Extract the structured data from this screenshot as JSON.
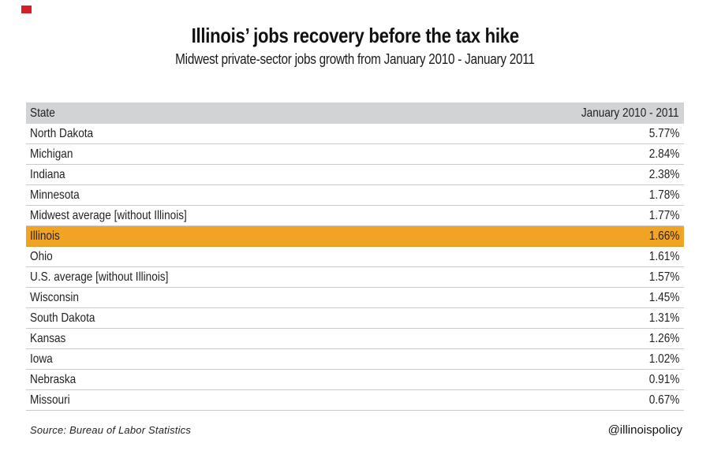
{
  "page": {
    "title": "Illinois’ jobs recovery before the tax hike",
    "subtitle": "Midwest private-sector jobs growth from January 2010 - January 2011"
  },
  "table": {
    "header": {
      "state": "State",
      "period": "January 2010 - 2011"
    }
  },
  "chart_data": {
    "type": "table",
    "title": "Illinois’ jobs recovery before the tax hike",
    "subtitle": "Midwest private-sector jobs growth from January 2010 - January 2011",
    "columns": [
      "State",
      "January 2010 - 2011"
    ],
    "rows": [
      {
        "state": "North Dakota",
        "value": "5.77%",
        "highlight": false
      },
      {
        "state": "Michigan",
        "value": "2.84%",
        "highlight": false
      },
      {
        "state": "Indiana",
        "value": "2.38%",
        "highlight": false
      },
      {
        "state": "Minnesota",
        "value": "1.78%",
        "highlight": false
      },
      {
        "state": "Midwest average [without Illinois]",
        "value": "1.77%",
        "highlight": false
      },
      {
        "state": "Illinois",
        "value": "1.66%",
        "highlight": true
      },
      {
        "state": "Ohio",
        "value": "1.61%",
        "highlight": false
      },
      {
        "state": "U.S. average [without Illinois]",
        "value": "1.57%",
        "highlight": false
      },
      {
        "state": "Wisconsin",
        "value": "1.45%",
        "highlight": false
      },
      {
        "state": "South Dakota",
        "value": "1.31%",
        "highlight": false
      },
      {
        "state": "Kansas",
        "value": "1.26%",
        "highlight": false
      },
      {
        "state": "Iowa",
        "value": "1.02%",
        "highlight": false
      },
      {
        "state": "Nebraska",
        "value": "0.91%",
        "highlight": false
      },
      {
        "state": "Missouri",
        "value": "0.67%",
        "highlight": false
      }
    ],
    "highlight_row": "Illinois",
    "highlight_color": "#f1a423",
    "header_bg": "#d1d3d4",
    "values_numeric_pct": [
      5.77,
      2.84,
      2.38,
      1.78,
      1.77,
      1.66,
      1.61,
      1.57,
      1.45,
      1.31,
      1.26,
      1.02,
      0.91,
      0.67
    ]
  },
  "footer": {
    "source": "Source: Bureau of Labor Statistics",
    "handle": "@illinoispolicy"
  }
}
